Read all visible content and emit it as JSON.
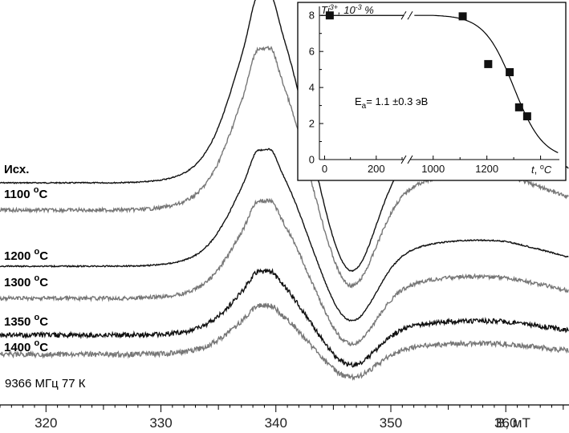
{
  "chart_data": [
    {
      "type": "line",
      "xlabel": "B, мТ",
      "xticks": [
        320,
        330,
        340,
        350,
        360
      ],
      "xlim": [
        316,
        365.5
      ],
      "annotation": "9366 МГц 77 К",
      "series": [
        {
          "name": "Исх.",
          "label": "Исх.",
          "sup": "",
          "color": "#111111",
          "baseline": 0,
          "amp": 1.0,
          "noise": 0.35
        },
        {
          "name": "1100 °C",
          "label": "1100 ",
          "sup": "o",
          "tail": "C",
          "color": "#777777",
          "baseline": -1,
          "amp": 0.86,
          "noise": 1.1
        },
        {
          "name": "1200 °C",
          "label": "1200 ",
          "sup": "o",
          "tail": "C",
          "color": "#111111",
          "baseline": -2,
          "amp": 0.62,
          "noise": 0.4
        },
        {
          "name": "1300 °C",
          "label": "1300 ",
          "sup": "o",
          "tail": "C",
          "color": "#777777",
          "baseline": -3,
          "amp": 0.52,
          "noise": 1.2
        },
        {
          "name": "1350 °C",
          "label": "1350 ",
          "sup": "o",
          "tail": "C",
          "color": "#111111",
          "baseline": -4,
          "amp": 0.34,
          "noise": 1.5
        },
        {
          "name": "1400 °C",
          "label": "1400 ",
          "sup": "o",
          "tail": "C",
          "color": "#777777",
          "baseline": -5,
          "amp": 0.26,
          "noise": 1.6
        }
      ]
    },
    {
      "type": "scatter",
      "ylabel_main": "Ti",
      "ylabel_sup": "3+",
      "ylabel_tail": ", 10",
      "ylabel_exp": "-3",
      "ylabel_unit": " %",
      "xlabel_main": "t",
      "xlabel_unit": ", ",
      "xlabel_sup": "o",
      "xlabel_tail": "C",
      "yticks": [
        0,
        2,
        4,
        6,
        8
      ],
      "ylim": [
        0,
        8.5
      ],
      "xticks_left": [
        0,
        200
      ],
      "xticks_right": [
        1000,
        1200
      ],
      "axis_break": true,
      "points": [
        {
          "t": 20,
          "y": 8.0
        },
        {
          "t": 1110,
          "y": 7.95
        },
        {
          "t": 1205,
          "y": 5.3
        },
        {
          "t": 1285,
          "y": 4.85
        },
        {
          "t": 1320,
          "y": 2.9
        },
        {
          "t": 1350,
          "y": 2.4
        }
      ],
      "fit_curve": {
        "plateau": 8.0,
        "shape": "Arrhenius decay"
      },
      "annotation_main": "E",
      "annotation_sub": "a",
      "annotation_tail": "= 1.1 ±0.3 эВ"
    }
  ]
}
